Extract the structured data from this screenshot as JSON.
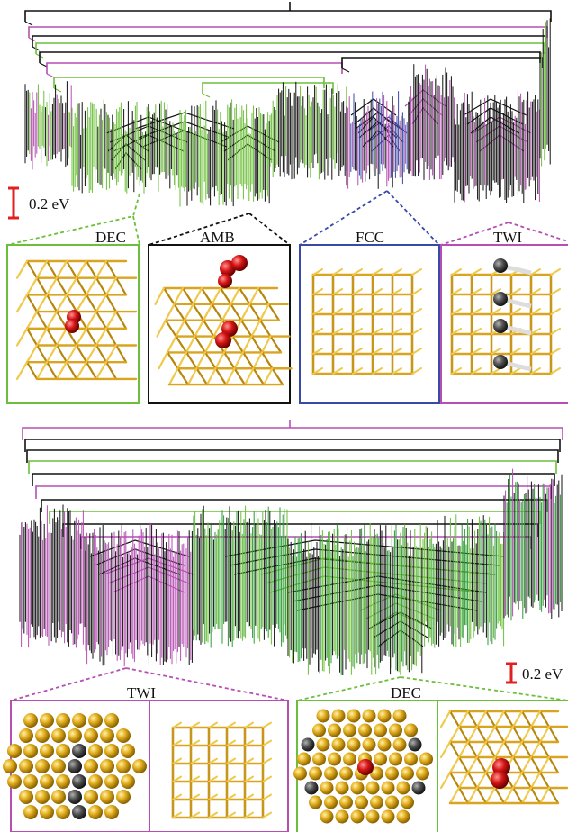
{
  "colors": {
    "green": "#6cbf3a",
    "dark_green": "#2e9b35",
    "magenta": "#b54fb3",
    "blue": "#3849a6",
    "black": "#111111",
    "red": "#e02020",
    "gold": "#d9a520",
    "gold_light": "#f0c84a",
    "atom_red": "#d01a1a",
    "atom_grey": "#4a4a4a"
  },
  "top_panel": {
    "scale_bar_label": "0.2 eV",
    "insets": [
      {
        "label": "DEC",
        "color_key": "green",
        "structure": "decahedral-cluster-with-red-atom"
      },
      {
        "label": "AMB",
        "color_key": "black",
        "structure": "amorphous-cluster-with-red-atoms"
      },
      {
        "label": "FCC",
        "color_key": "blue",
        "structure": "fcc-cluster"
      },
      {
        "label": "TWI",
        "color_key": "magenta",
        "structure": "twinned-cluster-with-grey-atoms"
      }
    ]
  },
  "bottom_panel": {
    "scale_bar_label": "0.2 eV",
    "insets": [
      {
        "label": "TWI",
        "color_key": "magenta",
        "structure": "twinned-cluster-views"
      },
      {
        "label": "DEC",
        "color_key": "green",
        "structure": "decahedral-cluster-views"
      }
    ]
  }
}
